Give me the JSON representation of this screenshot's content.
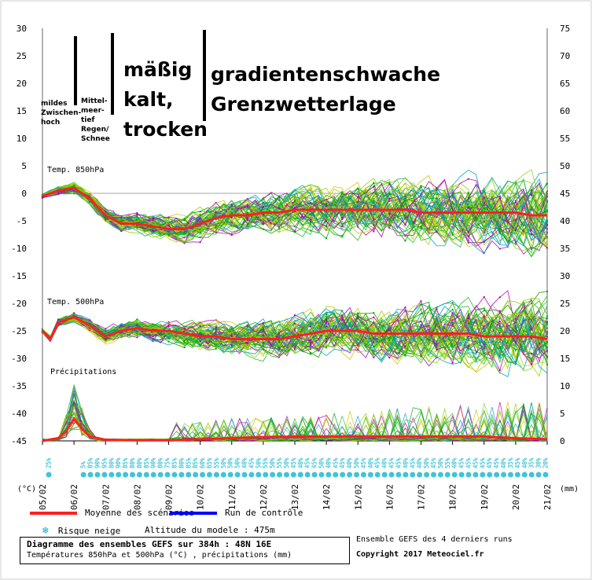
{
  "chart_data": {
    "type": "line",
    "title": "Diagramme des ensembles GEFS sur 384h : 48N 16E",
    "subtitle": "Températures 850hPa et 500hPa (°C) , précipitations (mm)",
    "x_tick_labels": [
      "05/02",
      "06/02",
      "07/02",
      "08/02",
      "09/02",
      "10/02",
      "11/02",
      "12/02",
      "13/02",
      "14/02",
      "15/02",
      "16/02",
      "17/02",
      "18/02",
      "19/02",
      "20/02",
      "21/02"
    ],
    "x_unit": "",
    "y_left_unit": "(°C)",
    "y_right_unit": "(mm)",
    "y_left_ticks": [
      30,
      25,
      20,
      15,
      10,
      5,
      0,
      -5,
      -10,
      -15,
      -20,
      -25,
      -30,
      -35,
      -40,
      -45
    ],
    "y_right_ticks": [
      75,
      70,
      65,
      60,
      55,
      50,
      45,
      40,
      35,
      30,
      25,
      20,
      15,
      10,
      5,
      0
    ],
    "ylim_left": [
      -45,
      30
    ],
    "ylim_right": [
      0,
      75
    ],
    "grid": false,
    "panel_labels": [
      "Temp. 850hPa",
      "Temp. 500hPa",
      "Précipitations"
    ],
    "series": [
      {
        "name": "Temp. 850hPa",
        "x_days": [
          0,
          0.5,
          1,
          1.5,
          2,
          2.5,
          3,
          3.5,
          4,
          4.5,
          5,
          5.5,
          6,
          6.5,
          7,
          7.5,
          8,
          8.5,
          9,
          9.5,
          10,
          10.5,
          11,
          11.5,
          12,
          12.5,
          13,
          13.5,
          14,
          14.5,
          15,
          15.5,
          16
        ],
        "values": [
          -0.5,
          0.5,
          1,
          -1,
          -4,
          -5.5,
          -5.5,
          -6,
          -6.5,
          -6.5,
          -5.5,
          -4.5,
          -4,
          -4,
          -3.5,
          -3.5,
          -3,
          -3,
          -3,
          -3,
          -3,
          -3,
          -3,
          -3,
          -3.5,
          -3.5,
          -3.5,
          -3.5,
          -3.5,
          -3.5,
          -3.5,
          -4,
          -4
        ]
      },
      {
        "name": "Temp. 500hPa",
        "x_days": [
          0,
          0.25,
          0.5,
          1,
          1.5,
          2,
          2.5,
          3,
          3.5,
          4,
          4.5,
          5,
          5.5,
          6,
          6.5,
          7,
          7.5,
          8,
          8.5,
          9,
          9.5,
          10,
          10.5,
          11,
          11.5,
          12,
          12.5,
          13,
          13.5,
          14,
          14.5,
          15,
          15.5,
          16
        ],
        "values": [
          -25,
          -26.5,
          -23.5,
          -22.5,
          -24,
          -26,
          -25,
          -24.5,
          -25,
          -25,
          -25.5,
          -26,
          -26,
          -26.5,
          -26.5,
          -26.5,
          -26.5,
          -26,
          -25.5,
          -25,
          -25,
          -25,
          -25.5,
          -25.5,
          -25.5,
          -25.5,
          -25.5,
          -25.5,
          -25.5,
          -26,
          -26,
          -26,
          -26,
          -26.5
        ]
      },
      {
        "name": "Précipitations",
        "x_days": [
          0,
          0.5,
          0.8,
          1,
          1.2,
          1.5,
          2,
          3,
          4,
          5,
          6,
          7,
          8,
          9,
          10,
          11,
          12,
          13,
          14,
          15,
          16
        ],
        "values": [
          0,
          0.5,
          2,
          4,
          2.5,
          0.8,
          0.2,
          0.1,
          0.1,
          0.3,
          0.5,
          0.7,
          0.8,
          0.8,
          0.8,
          0.8,
          0.8,
          0.8,
          0.8,
          0.5,
          0.3
        ]
      }
    ],
    "snow_risk_labels": [
      "25%",
      "5%",
      "85%",
      "90%",
      "95%",
      "80%",
      "90%",
      "85%",
      "80%",
      "80%",
      "85%",
      "90%",
      "80%",
      "75%",
      "85%",
      "80%",
      "85%",
      "85%",
      "60%",
      "65%",
      "55%",
      "50%",
      "50%",
      "50%",
      "40%",
      "45%",
      "50%",
      "55%",
      "50%",
      "55%",
      "50%",
      "45%",
      "40%",
      "45%",
      "45%",
      "50%",
      "40%",
      "45%",
      "45%",
      "40%",
      "50%",
      "45%",
      "40%",
      "45%",
      "40%",
      "45%",
      "45%",
      "40%",
      "45%",
      "40%",
      "50%",
      "45%",
      "50%",
      "55%",
      "40%",
      "45%",
      "45%",
      "45%",
      "45%",
      "45%",
      "45%",
      "40%",
      "35%",
      "45%",
      "40%",
      "35%",
      "30%",
      "20%"
    ],
    "colors": {
      "mean": "#ff2020",
      "control": "#0000ff",
      "members": [
        "#00a000",
        "#22bb22",
        "#c8c800",
        "#b000b0",
        "#00a0c0",
        "#90d000"
      ],
      "snow": "#00b0c8"
    }
  },
  "annotations": {
    "a1": [
      "mildes",
      "Zwischen-",
      "hoch"
    ],
    "a2": [
      "Mittel-",
      "meer-",
      "tief",
      "Regen/",
      "Schnee"
    ],
    "a3": [
      "mäßig",
      "kalt,",
      "trocken"
    ],
    "a4": [
      "gradientenschwache",
      "Grenzwetterlage"
    ]
  },
  "legend": {
    "mean": "Moyenne des scénarios",
    "control": "Run de contrôle",
    "snow": "Risque neige",
    "altitude": "Altitude du modele : 475m"
  },
  "footer": {
    "title": "Diagramme des ensembles GEFS sur 384h : 48N 16E",
    "subtitle": "Températures 850hPa et 500hPa (°C) , précipitations (mm)",
    "runs": "Ensemble GEFS des 4 derniers runs",
    "copyright": "Copyright 2017 Meteociel.fr"
  }
}
